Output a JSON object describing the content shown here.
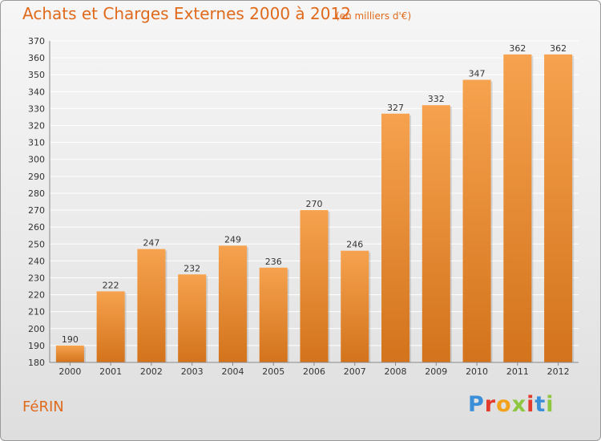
{
  "header": {
    "title": "Achats et Charges Externes 2000 à 2012",
    "subtitle": "(en milliers d'€)"
  },
  "footer": {
    "place": "FéRIN",
    "logo_text": "Proxiti",
    "logo_colors": [
      "#3a8fd8",
      "#e23b2e",
      "#f2a31b",
      "#8dc63f",
      "#e23b2e",
      "#3a8fd8",
      "#8dc63f"
    ]
  },
  "colors": {
    "bar_light": "#f6a24e",
    "bar_dark": "#d3731c",
    "grid": "#ffffff",
    "axis": "#888888"
  },
  "chart_data": {
    "type": "bar",
    "categories": [
      "2000",
      "2001",
      "2002",
      "2003",
      "2004",
      "2005",
      "2006",
      "2007",
      "2008",
      "2009",
      "2010",
      "2011",
      "2012"
    ],
    "values": [
      190,
      222,
      247,
      232,
      249,
      236,
      270,
      246,
      327,
      332,
      347,
      362,
      362
    ],
    "title": "Achats et Charges Externes 2000 à 2012",
    "ylim": [
      180,
      370
    ],
    "yticks": [
      180,
      190,
      200,
      210,
      220,
      230,
      240,
      250,
      260,
      270,
      280,
      290,
      300,
      310,
      320,
      330,
      340,
      350,
      360,
      370
    ],
    "grid": true,
    "data_labels": true
  }
}
